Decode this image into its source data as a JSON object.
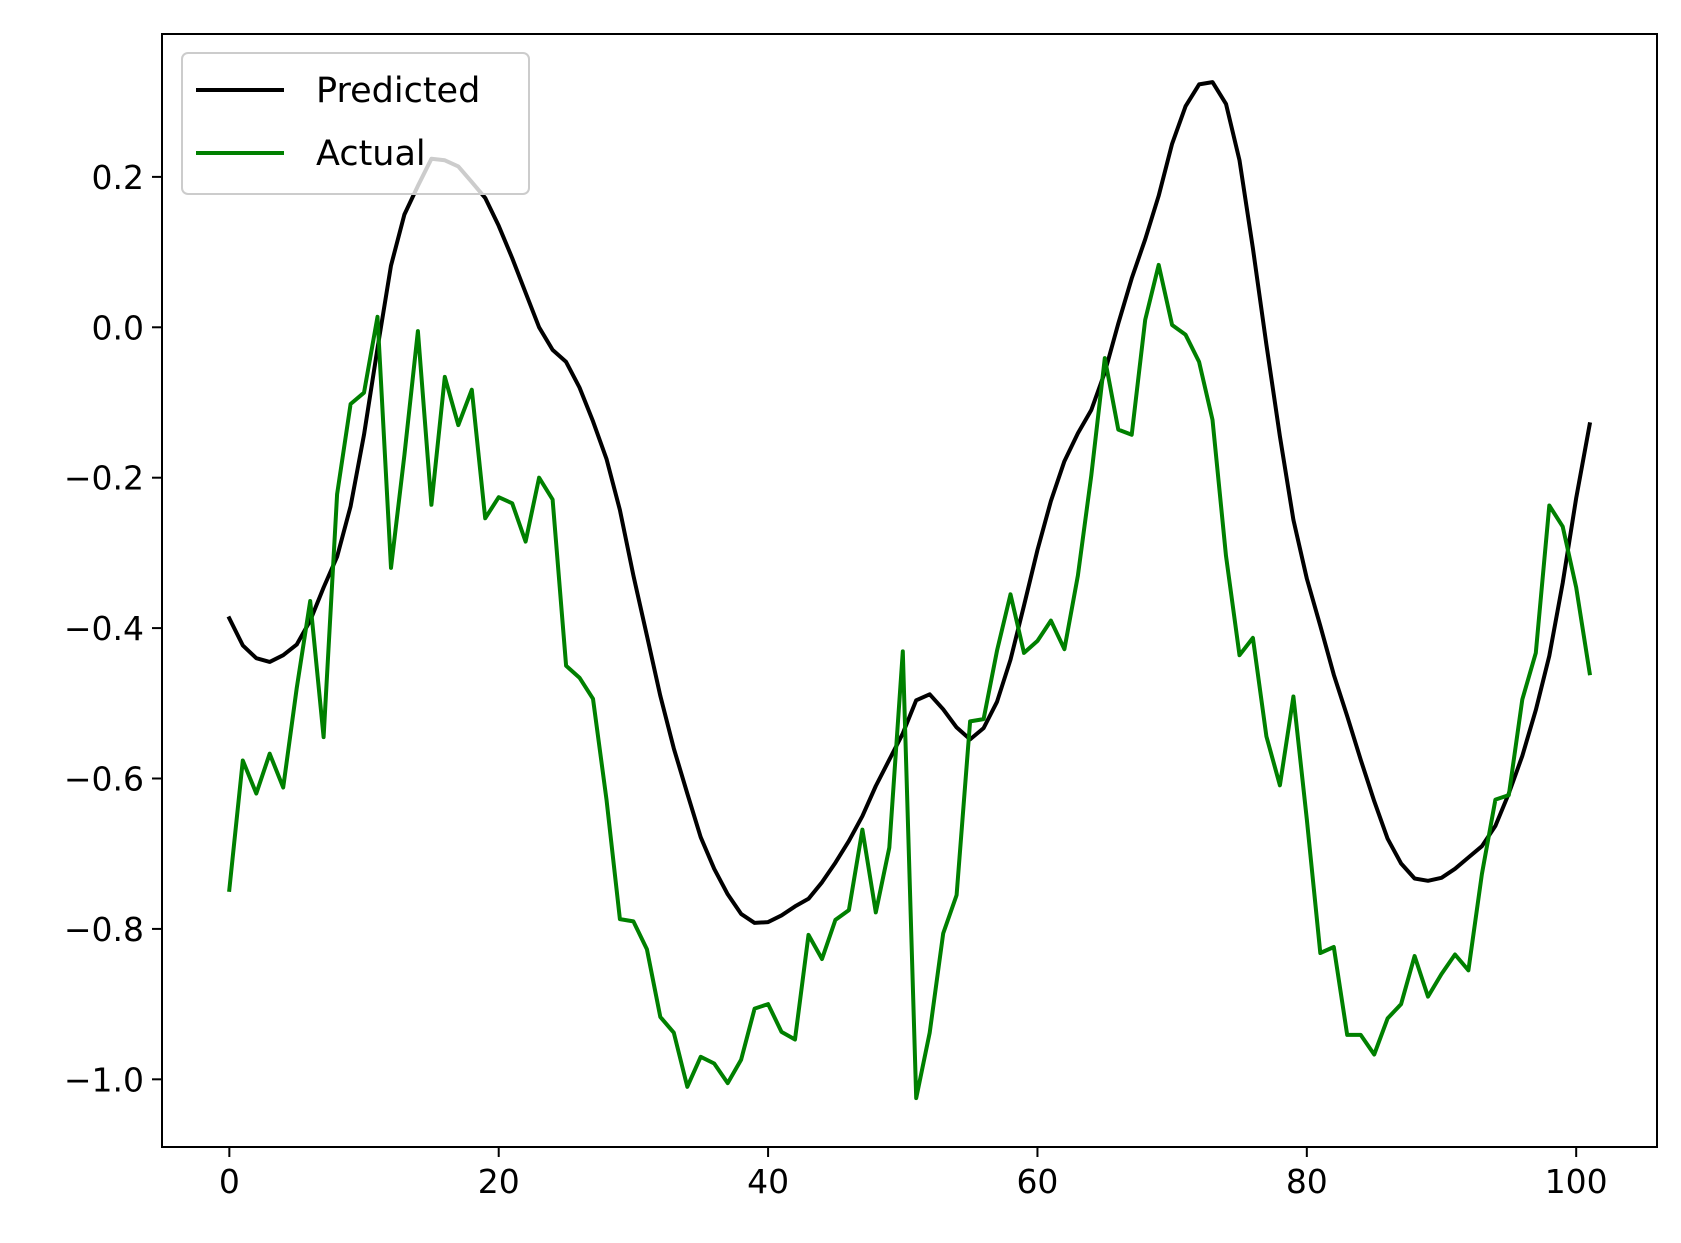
{
  "chart_data": {
    "type": "line",
    "title": "",
    "xlabel": "",
    "ylabel": "",
    "xlim": [
      -5,
      106
    ],
    "ylim": [
      -1.09,
      0.39
    ],
    "x_ticks": [
      0,
      20,
      40,
      60,
      80,
      100
    ],
    "y_ticks": [
      0.2,
      0.0,
      -0.2,
      -0.4,
      -0.6,
      -0.8,
      -1.0
    ],
    "x_tick_labels": [
      "0",
      "20",
      "40",
      "60",
      "80",
      "100"
    ],
    "y_tick_labels": [
      "0.2",
      "0.0",
      "−0.2",
      "−0.4",
      "−0.6",
      "−0.8",
      "−1.0"
    ],
    "grid": false,
    "legend": {
      "position": "top-left"
    },
    "series": [
      {
        "name": "Predicted",
        "color": "#000000",
        "values": [
          -0.387,
          -0.423,
          -0.44,
          -0.445,
          -0.436,
          -0.422,
          -0.39,
          -0.346,
          -0.305,
          -0.238,
          -0.143,
          -0.028,
          0.082,
          0.15,
          0.188,
          0.224,
          0.222,
          0.214,
          0.193,
          0.172,
          0.135,
          0.092,
          0.046,
          0.0,
          -0.03,
          -0.046,
          -0.08,
          -0.125,
          -0.175,
          -0.243,
          -0.33,
          -0.41,
          -0.49,
          -0.56,
          -0.62,
          -0.678,
          -0.72,
          -0.754,
          -0.78,
          -0.792,
          -0.791,
          -0.782,
          -0.77,
          -0.76,
          -0.738,
          -0.712,
          -0.683,
          -0.65,
          -0.61,
          -0.575,
          -0.54,
          -0.496,
          -0.488,
          -0.508,
          -0.532,
          -0.548,
          -0.533,
          -0.498,
          -0.442,
          -0.37,
          -0.296,
          -0.231,
          -0.178,
          -0.141,
          -0.11,
          -0.06,
          0.005,
          0.065,
          0.117,
          0.175,
          0.244,
          0.294,
          0.323,
          0.326,
          0.297,
          0.222,
          0.105,
          -0.023,
          -0.145,
          -0.256,
          -0.334,
          -0.397,
          -0.462,
          -0.517,
          -0.575,
          -0.63,
          -0.68,
          -0.713,
          -0.733,
          -0.736,
          -0.732,
          -0.72,
          -0.705,
          -0.69,
          -0.663,
          -0.62,
          -0.57,
          -0.509,
          -0.437,
          -0.34,
          -0.227,
          -0.129
        ]
      },
      {
        "name": "Actual",
        "color": "#008000",
        "values": [
          -0.748,
          -0.576,
          -0.62,
          -0.567,
          -0.612,
          -0.48,
          -0.364,
          -0.545,
          -0.222,
          -0.102,
          -0.087,
          0.014,
          -0.32,
          -0.17,
          -0.005,
          -0.236,
          -0.066,
          -0.13,
          -0.083,
          -0.254,
          -0.226,
          -0.234,
          -0.285,
          -0.2,
          -0.229,
          -0.45,
          -0.466,
          -0.494,
          -0.628,
          -0.787,
          -0.79,
          -0.827,
          -0.917,
          -0.938,
          -1.01,
          -0.97,
          -0.979,
          -1.005,
          -0.974,
          -0.906,
          -0.9,
          -0.937,
          -0.947,
          -0.808,
          -0.84,
          -0.788,
          -0.775,
          -0.668,
          -0.778,
          -0.692,
          -0.431,
          -1.025,
          -0.938,
          -0.806,
          -0.755,
          -0.524,
          -0.521,
          -0.43,
          -0.355,
          -0.433,
          -0.417,
          -0.39,
          -0.428,
          -0.33,
          -0.197,
          -0.041,
          -0.136,
          -0.143,
          0.01,
          0.083,
          0.003,
          -0.01,
          -0.046,
          -0.123,
          -0.304,
          -0.436,
          -0.413,
          -0.544,
          -0.609,
          -0.491,
          -0.654,
          -0.832,
          -0.824,
          -0.941,
          -0.941,
          -0.967,
          -0.919,
          -0.9,
          -0.836,
          -0.89,
          -0.86,
          -0.834,
          -0.855,
          -0.727,
          -0.628,
          -0.622,
          -0.495,
          -0.433,
          -0.237,
          -0.265,
          -0.346,
          -0.46
        ]
      }
    ]
  }
}
